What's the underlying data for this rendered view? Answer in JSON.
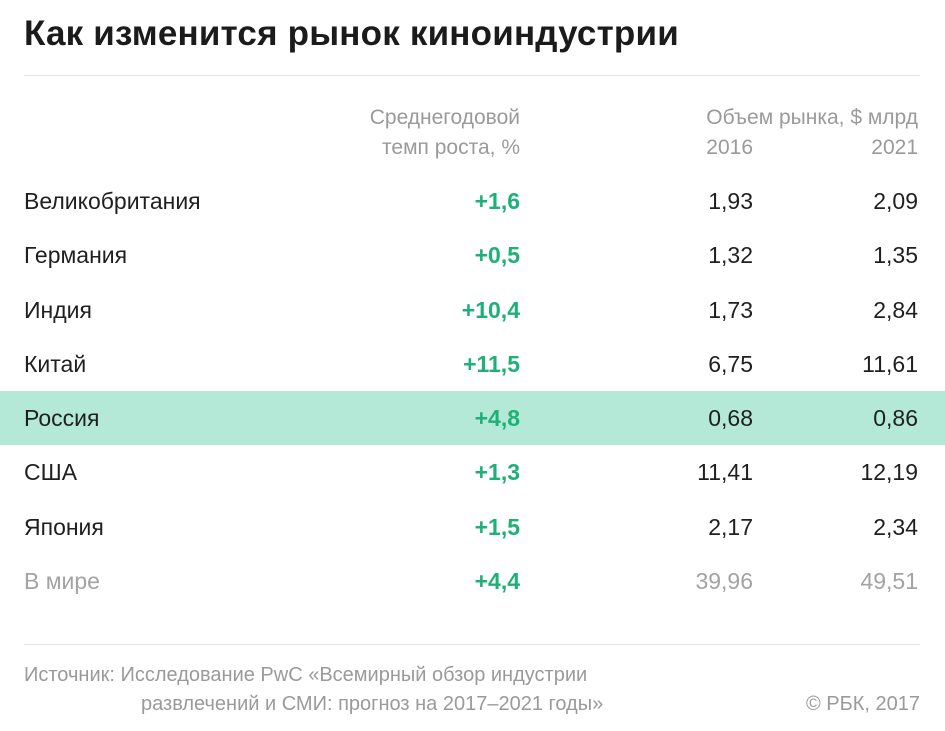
{
  "chart_data": {
    "type": "table",
    "title": "Как изменится рынок киноиндустрии",
    "headers": {
      "growth_line1": "Среднегодовой",
      "growth_line2": "темп роста, %",
      "market": "Объем рынка, $ млрд",
      "year_start": "2016",
      "year_end": "2021"
    },
    "rows": [
      {
        "country": "Великобритания",
        "growth": "+1,6",
        "v2016": "1,93",
        "v2021": "2,09"
      },
      {
        "country": "Германия",
        "growth": "+0,5",
        "v2016": "1,32",
        "v2021": "1,35"
      },
      {
        "country": "Индия",
        "growth": "+10,4",
        "v2016": "1,73",
        "v2021": "2,84"
      },
      {
        "country": "Китай",
        "growth": "+11,5",
        "v2016": "6,75",
        "v2021": "11,61"
      },
      {
        "country": "Россия",
        "growth": "+4,8",
        "v2016": "0,68",
        "v2021": "0,86"
      },
      {
        "country": "США",
        "growth": "+1,3",
        "v2016": "11,41",
        "v2021": "12,19"
      },
      {
        "country": "Япония",
        "growth": "+1,5",
        "v2016": "2,17",
        "v2021": "2,34"
      },
      {
        "country": "В мире",
        "growth": "+4,4",
        "v2016": "39,96",
        "v2021": "49,51"
      }
    ],
    "highlighted_row": "Россия",
    "colors": {
      "growth": "#1db177",
      "highlight": "#b3e9d6",
      "muted": "#a3a3a3"
    }
  },
  "footer": {
    "source_line1": "Источник: Исследование PwC «Всемирный обзор индустрии",
    "source_line2": "развлечений и СМИ: прогноз на 2017–2021 годы»",
    "copyright": "© РБК, 2017"
  }
}
